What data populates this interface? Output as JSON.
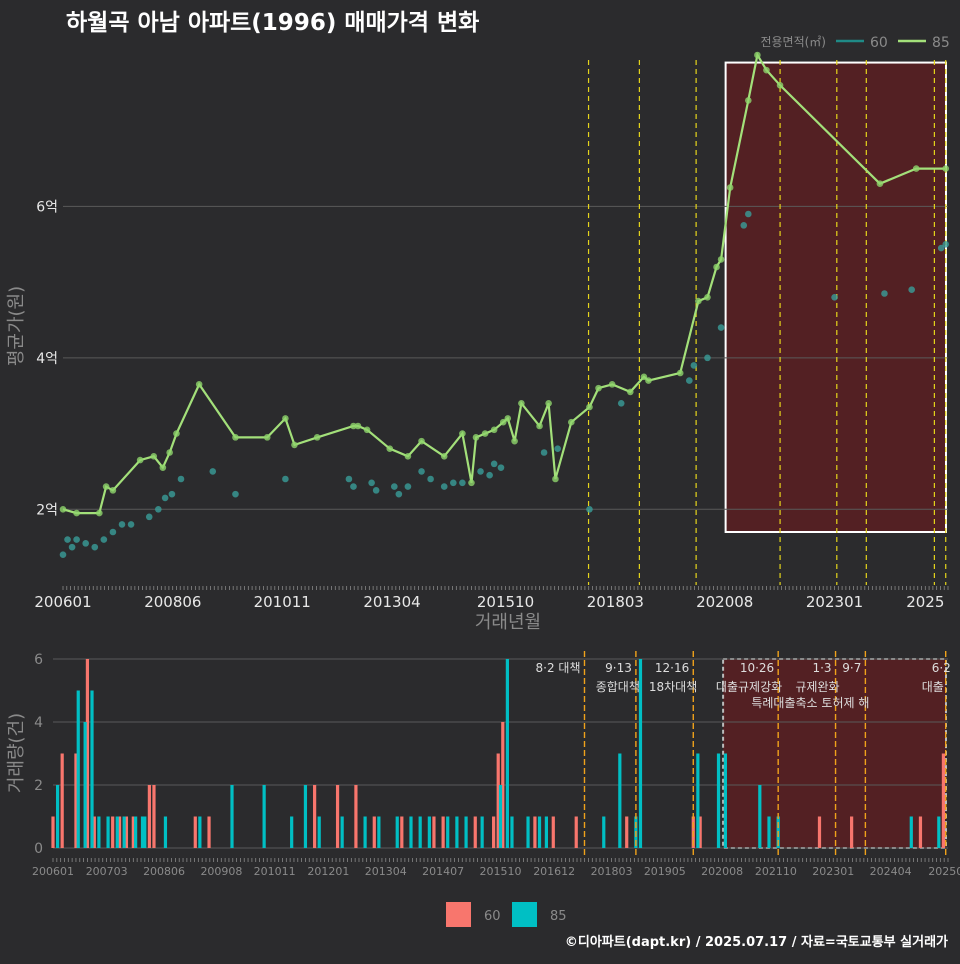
{
  "title": "하월곡 아남 아파트(1996) 매매가격 변화",
  "footer": "©디아파트(dapt.kr) / 2025.07.17 / 자료=국토교통부 실거래가",
  "colors": {
    "background": "#2b2b2d",
    "s60_line": "#1f8a86",
    "s60_point": "#3a9e99",
    "s85_line": "#a3e07a",
    "s85_point": "#8fd46b",
    "bar60": "#f8766d",
    "bar85": "#00bfc4",
    "policy": "#e5d51b",
    "policy_bottom": "#f0a21b",
    "highlight": "#5a1e22",
    "grid": "#5a5a5a",
    "text": "#e8e8e8",
    "muted": "#8a8a8a"
  },
  "chart_data": [
    {
      "type": "line",
      "title": "하월곡 아남 아파트(1996) 매매가격 변화",
      "xlabel": "거래년월",
      "ylabel": "평균가(원)",
      "legend_title": "전용면적(㎡)",
      "legend_position": "top-right",
      "xlim": [
        2006.0,
        2025.5
      ],
      "ylim": [
        1.0,
        8.0
      ],
      "y_ticks": [
        {
          "value": 2,
          "label": "2억"
        },
        {
          "value": 4,
          "label": "4억"
        },
        {
          "value": 6,
          "label": "6억"
        }
      ],
      "x_ticks": [
        {
          "value": 2006.0,
          "label": "200601"
        },
        {
          "value": 2008.42,
          "label": "200806"
        },
        {
          "value": 2010.83,
          "label": "201011"
        },
        {
          "value": 2013.25,
          "label": "201304"
        },
        {
          "value": 2015.75,
          "label": "201510"
        },
        {
          "value": 2018.17,
          "label": "201803"
        },
        {
          "value": 2020.58,
          "label": "202008"
        },
        {
          "value": 2023.0,
          "label": "202301"
        },
        {
          "value": 2025.0,
          "label": "2025"
        }
      ],
      "policy_dates": [
        2017.58,
        2018.7,
        2019.95,
        2021.8,
        2023.05,
        2023.7,
        2025.2,
        2025.45
      ],
      "highlight_range": [
        2020.6,
        2025.5
      ],
      "series": [
        {
          "name": "60",
          "x": [
            2006.0,
            2006.1,
            2006.2,
            2006.3,
            2006.5,
            2006.7,
            2006.9,
            2007.1,
            2007.3,
            2007.5,
            2007.9,
            2008.1,
            2008.25,
            2008.4,
            2008.6,
            2009.3,
            2009.8,
            2010.9,
            2012.3,
            2012.4,
            2012.8,
            2012.9,
            2013.3,
            2013.4,
            2013.6,
            2013.9,
            2014.1,
            2014.4,
            2014.6,
            2014.8,
            2015.2,
            2015.4,
            2015.5,
            2015.65,
            2016.6,
            2016.9,
            2017.6,
            2018.3,
            2019.8,
            2019.9,
            2020.2,
            2020.5,
            2021.0,
            2021.1,
            2023.0,
            2024.1,
            2024.7,
            2025.35,
            2025.45
          ],
          "y": [
            1.4,
            1.6,
            1.5,
            1.6,
            1.55,
            1.5,
            1.6,
            1.7,
            1.8,
            1.8,
            1.9,
            2.0,
            2.15,
            2.2,
            2.4,
            2.5,
            2.2,
            2.4,
            2.4,
            2.3,
            2.35,
            2.25,
            2.3,
            2.2,
            2.3,
            2.5,
            2.4,
            2.3,
            2.35,
            2.35,
            2.5,
            2.45,
            2.6,
            2.55,
            2.75,
            2.8,
            2.0,
            3.4,
            3.7,
            3.9,
            4.0,
            4.4,
            5.75,
            5.9,
            4.8,
            4.85,
            4.9,
            5.45,
            5.5
          ]
        },
        {
          "name": "85",
          "x": [
            2006.0,
            2006.3,
            2006.8,
            2006.95,
            2007.1,
            2007.7,
            2008.0,
            2008.2,
            2008.35,
            2008.5,
            2009.0,
            2009.8,
            2010.5,
            2010.9,
            2011.1,
            2011.6,
            2012.4,
            2012.5,
            2012.7,
            2013.2,
            2013.6,
            2013.9,
            2014.4,
            2014.8,
            2015.0,
            2015.1,
            2015.3,
            2015.5,
            2015.7,
            2015.8,
            2015.95,
            2016.1,
            2016.5,
            2016.7,
            2016.85,
            2017.2,
            2017.6,
            2017.8,
            2018.1,
            2018.5,
            2018.8,
            2018.9,
            2019.6,
            2020.0,
            2020.2,
            2020.4,
            2020.5,
            2020.7,
            2021.1,
            2021.3,
            2021.5,
            2021.8,
            2024.0,
            2024.8,
            2025.45
          ],
          "y": [
            2.0,
            1.95,
            1.95,
            2.3,
            2.25,
            2.65,
            2.7,
            2.55,
            2.75,
            3.0,
            3.65,
            2.95,
            2.95,
            3.2,
            2.85,
            2.95,
            3.1,
            3.1,
            3.05,
            2.8,
            2.7,
            2.9,
            2.7,
            3.0,
            2.35,
            2.95,
            3.0,
            3.05,
            3.15,
            3.2,
            2.9,
            3.4,
            3.1,
            3.4,
            2.4,
            3.15,
            3.35,
            3.6,
            3.65,
            3.55,
            3.75,
            3.7,
            3.8,
            4.75,
            4.8,
            5.2,
            5.3,
            6.25,
            7.4,
            8.0,
            7.8,
            7.6,
            6.3,
            6.5,
            6.5
          ]
        }
      ]
    },
    {
      "type": "bar",
      "ylabel": "거래량(건)",
      "ylim": [
        0,
        6
      ],
      "y_ticks": [
        0,
        2,
        4,
        6
      ],
      "x_ticks": [
        {
          "value": 2006.0,
          "label": "200601"
        },
        {
          "value": 2007.17,
          "label": "200703"
        },
        {
          "value": 2008.42,
          "label": "200806"
        },
        {
          "value": 2009.67,
          "label": "200908"
        },
        {
          "value": 2010.83,
          "label": "201011"
        },
        {
          "value": 2012.0,
          "label": "201201"
        },
        {
          "value": 2013.25,
          "label": "201304"
        },
        {
          "value": 2014.5,
          "label": "201407"
        },
        {
          "value": 2015.75,
          "label": "201510"
        },
        {
          "value": 2016.92,
          "label": "201612"
        },
        {
          "value": 2018.17,
          "label": "201803"
        },
        {
          "value": 2019.33,
          "label": "201905"
        },
        {
          "value": 2020.58,
          "label": "202008"
        },
        {
          "value": 2021.75,
          "label": "202110"
        },
        {
          "value": 2023.0,
          "label": "202301"
        },
        {
          "value": 2024.25,
          "label": "202404"
        },
        {
          "value": 2025.45,
          "label": "20250"
        }
      ],
      "policies": [
        {
          "x": 2017.58,
          "label": "8·2 대책",
          "label2": ""
        },
        {
          "x": 2018.7,
          "label": "9·13",
          "label2": "종합대책"
        },
        {
          "x": 2019.95,
          "label": "12·16",
          "label2": "18차대책"
        },
        {
          "x": 2021.8,
          "label": "10·26",
          "label2": "대출규제강화"
        },
        {
          "x": 2023.05,
          "label": "1·3",
          "label2": "규제완화"
        },
        {
          "x": 2023.7,
          "label": "9·7",
          "label2": "특례대출축소 토허제 해"
        },
        {
          "x": 2025.45,
          "label": "6·2",
          "label2": "대출"
        }
      ],
      "highlight_range": [
        2020.6,
        2025.5
      ],
      "series": [
        {
          "name": "60",
          "x": [
            2006.0,
            2006.2,
            2006.5,
            2006.75,
            2006.9,
            2007.3,
            2007.45,
            2007.6,
            2007.75,
            2008.1,
            2008.2,
            2009.1,
            2009.4,
            2011.7,
            2012.2,
            2012.6,
            2013.0,
            2013.6,
            2014.3,
            2014.5,
            2015.2,
            2015.6,
            2015.7,
            2015.8,
            2016.5,
            2016.9,
            2017.4,
            2018.5,
            2019.95,
            2020.1,
            2022.7,
            2023.4,
            2024.9,
            2025.4
          ],
          "y": [
            1,
            3,
            3,
            6,
            1,
            1,
            1,
            1,
            1,
            2,
            2,
            1,
            1,
            2,
            2,
            2,
            1,
            1,
            1,
            1,
            1,
            1,
            3,
            4,
            1,
            1,
            1,
            1,
            1,
            1,
            1,
            1,
            1,
            3
          ]
        },
        {
          "name": "85",
          "x": [
            2006.1,
            2006.55,
            2006.7,
            2006.85,
            2007.0,
            2007.2,
            2007.4,
            2007.55,
            2007.8,
            2007.95,
            2008.0,
            2008.45,
            2009.2,
            2009.9,
            2010.6,
            2011.2,
            2011.5,
            2011.8,
            2012.3,
            2012.8,
            2013.1,
            2013.5,
            2013.8,
            2014.0,
            2014.2,
            2014.6,
            2014.8,
            2015.0,
            2015.35,
            2015.75,
            2015.9,
            2016.0,
            2016.35,
            2016.6,
            2016.75,
            2018.0,
            2018.35,
            2018.7,
            2018.8,
            2020.05,
            2020.5,
            2020.65,
            2021.4,
            2021.6,
            2021.8,
            2024.7,
            2025.3
          ],
          "y": [
            2,
            5,
            4,
            5,
            1,
            1,
            1,
            1,
            1,
            1,
            1,
            1,
            1,
            2,
            2,
            1,
            2,
            1,
            1,
            1,
            1,
            1,
            1,
            1,
            1,
            1,
            1,
            1,
            1,
            2,
            6,
            1,
            1,
            1,
            1,
            1,
            3,
            1,
            6,
            3,
            3,
            3,
            2,
            1,
            1,
            1,
            1
          ]
        }
      ]
    }
  ]
}
